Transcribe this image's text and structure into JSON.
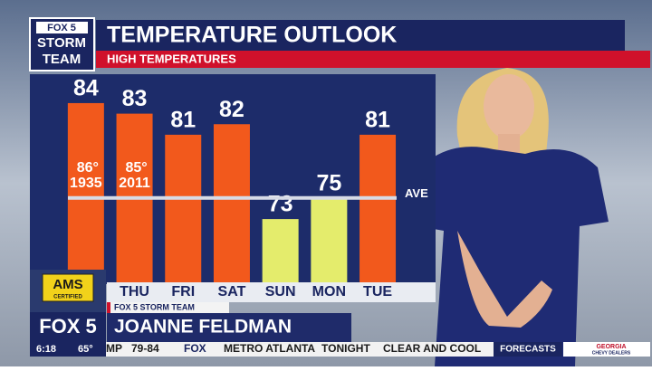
{
  "chart_data": {
    "type": "bar",
    "title": "TEMPERATURE OUTLOOK",
    "subtitle": "HIGH TEMPERATURES",
    "categories": [
      null,
      "THU",
      "FRI",
      "SAT",
      "SUN",
      "MON",
      "TUE"
    ],
    "values": [
      84,
      83,
      81,
      82,
      73,
      75,
      81
    ],
    "colors": [
      "#f2591c",
      "#f2591c",
      "#f2591c",
      "#f2591c",
      "#e4ec6c",
      "#e4ec6c",
      "#f2591c"
    ],
    "record_highs": [
      {
        "temp": "86°",
        "year": "1935"
      },
      {
        "temp": "85°",
        "year": "2011"
      }
    ],
    "average": 75,
    "average_label": "AVE",
    "ylim": [
      67,
      87
    ]
  },
  "logo": {
    "line1": "FOX 5",
    "line2": "STORM",
    "line3": "TEAM"
  },
  "badge": {
    "line1": "AMS",
    "line2": "CERTIFIED"
  },
  "lower_third": {
    "team": "FOX 5 STORM TEAM",
    "station": "FOX 5",
    "name": "JOANNE FELDMAN"
  },
  "ticker": {
    "time": "6:18",
    "temp": "65°",
    "items": [
      "MP",
      "79-84",
      "FOX",
      "METRO ATLANTA",
      "TONIGHT",
      "CLEAR AND COOL"
    ],
    "section": "FORECASTS",
    "sponsor1": "GEORGIA",
    "sponsor2": "CHEVY DEALERS"
  }
}
